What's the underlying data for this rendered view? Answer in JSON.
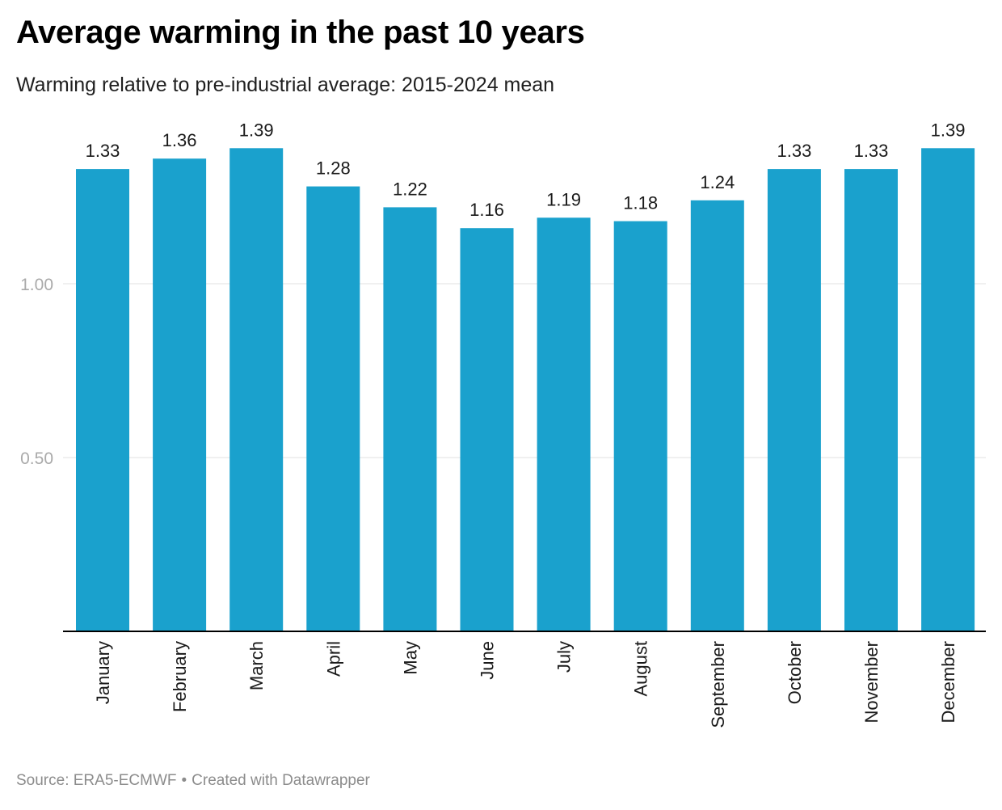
{
  "chart_data": {
    "type": "bar",
    "title": "Average warming in the past 10 years",
    "subtitle": "Warming relative to pre-industrial average: 2015-2024 mean",
    "categories": [
      "January",
      "February",
      "March",
      "April",
      "May",
      "June",
      "July",
      "August",
      "September",
      "October",
      "November",
      "December"
    ],
    "values": [
      1.33,
      1.36,
      1.39,
      1.28,
      1.22,
      1.16,
      1.19,
      1.18,
      1.24,
      1.33,
      1.33,
      1.39
    ],
    "value_labels": [
      "1.33",
      "1.36",
      "1.39",
      "1.28",
      "1.22",
      "1.16",
      "1.19",
      "1.18",
      "1.24",
      "1.33",
      "1.33",
      "1.39"
    ],
    "y_ticks": [
      0.5,
      1.0
    ],
    "y_tick_labels": [
      "0.50",
      "1.00"
    ],
    "ylim": [
      0,
      1.41
    ],
    "xlabel": "",
    "ylabel": "",
    "grid": true,
    "colors": {
      "bar": "#1aa1cd",
      "grid": "#e2e2e2",
      "axis": "#000000",
      "tick_label": "#aaaaaa",
      "value_label": "#1a1a1a",
      "category_label": "#1a1a1a"
    }
  },
  "footer": {
    "source": "Source: ERA5-ECMWF",
    "separator": "•",
    "credit": "Created with Datawrapper"
  }
}
